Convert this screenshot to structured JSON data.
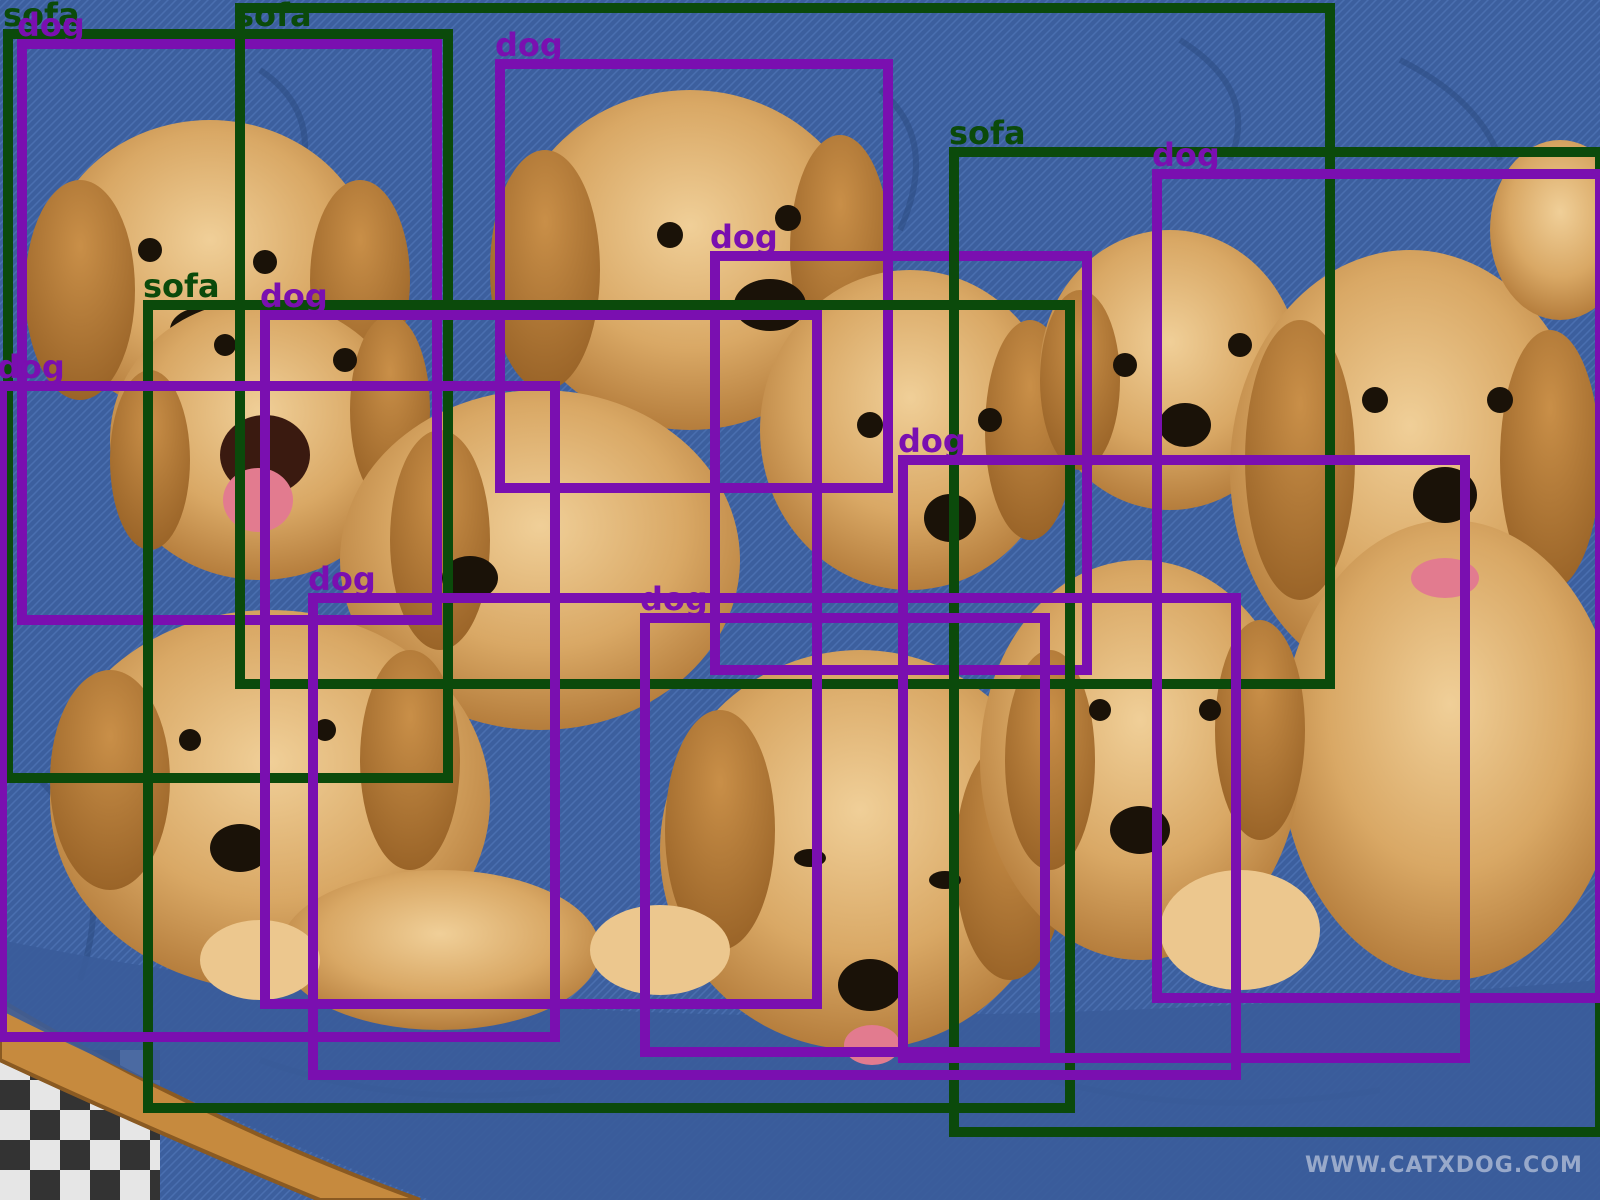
{
  "image": {
    "subject": "golden retriever puppies on a blue denim papasan cushion",
    "watermark": "WWW.CATXDOG.COM",
    "colors": {
      "cushion": "#3c5f9e",
      "cushion_dark": "#2c4a82",
      "puppy_fur": "#d9a865",
      "puppy_fur_light": "#ecc78e",
      "puppy_fur_dark": "#b57d3c",
      "rattan": "#c68a3e",
      "floor": "#d8d8d8"
    }
  },
  "detections": [
    {
      "label": "sofa",
      "class": "sofa"
    },
    {
      "label": "dog",
      "class": "dog"
    },
    {
      "label": "sofa",
      "class": "sofa"
    },
    {
      "label": "dog",
      "class": "dog"
    },
    {
      "label": "dog",
      "class": "dog"
    },
    {
      "label": "sofa",
      "class": "sofa"
    },
    {
      "label": "dog",
      "class": "dog"
    },
    {
      "label": "sofa",
      "class": "sofa"
    },
    {
      "label": "dog",
      "class": "dog"
    },
    {
      "label": "dog",
      "class": "dog"
    },
    {
      "label": "dog",
      "class": "dog"
    },
    {
      "label": "dog",
      "class": "dog"
    },
    {
      "label": "dog",
      "class": "dog"
    },
    {
      "label": "dog",
      "class": "dog"
    }
  ],
  "class_colors": {
    "sofa": "#0b4a0b",
    "dog": "#7a0fb0"
  }
}
